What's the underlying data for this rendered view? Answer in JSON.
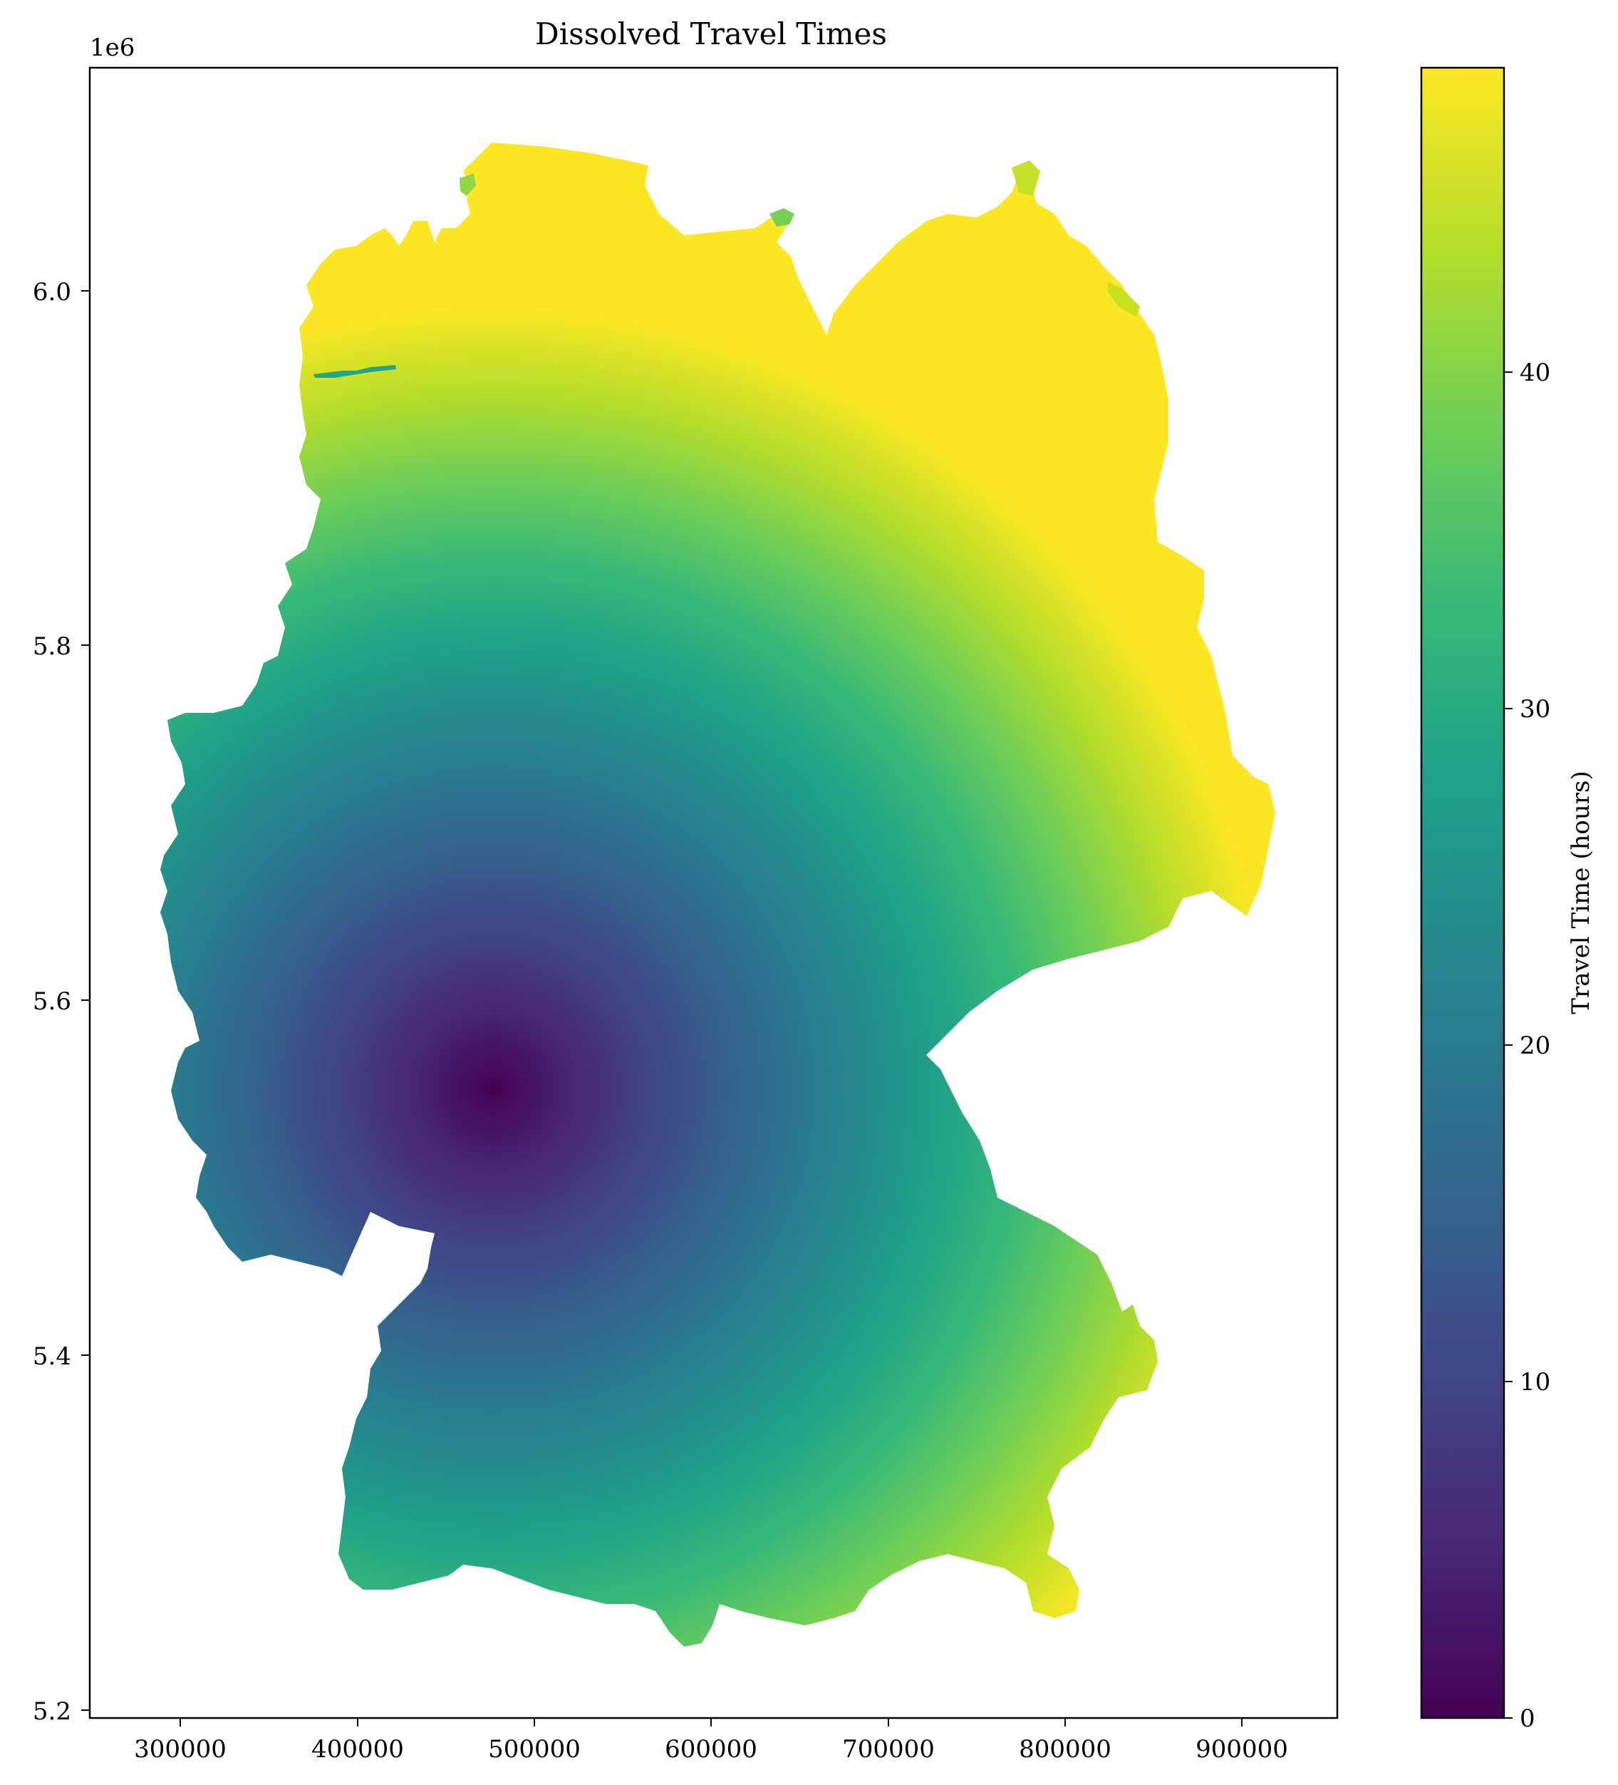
{
  "figure": {
    "title": "Dissolved Travel Times",
    "offset_label": "1e6",
    "colorbar_label": "Travel Time (hours)"
  },
  "chart_data": {
    "type": "choropleth",
    "title": "Dissolved Travel Times",
    "x_ticks": [
      "300000",
      "400000",
      "500000",
      "600000",
      "700000",
      "800000",
      "900000"
    ],
    "y_ticks": [
      "5.2",
      "5.4",
      "5.6",
      "5.8",
      "6.0"
    ],
    "y_offset": "1e6",
    "xlim": [
      250000,
      955000
    ],
    "ylim": [
      5195000,
      6125000
    ],
    "colorbar": {
      "label": "Travel Time (hours)",
      "ticks": [
        "0",
        "10",
        "20",
        "30",
        "40"
      ],
      "range": [
        0,
        48
      ],
      "colormap": "viridis"
    },
    "origin_min_travel_time": {
      "x": 480000,
      "y": 5550000,
      "value": 0
    },
    "max_travel_time_region": {
      "x": 890000,
      "y": 6030000,
      "value": 46
    }
  },
  "colors": {
    "viridis": [
      "#440154",
      "#482878",
      "#3e4989",
      "#31688e",
      "#26828e",
      "#1f9e89",
      "#35b779",
      "#6ece58",
      "#b5de2b",
      "#fde725"
    ]
  }
}
